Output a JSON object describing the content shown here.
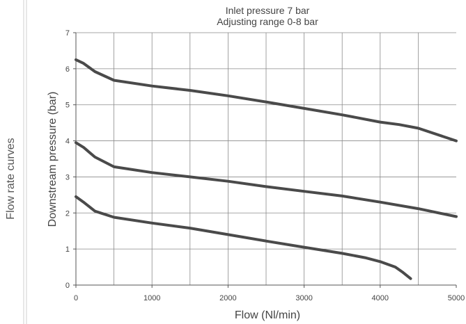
{
  "side_label": "Flow rate curves",
  "chart_data": {
    "type": "line",
    "title_lines": [
      "Inlet pressure 7 bar",
      "Adjusting range 0-8 bar"
    ],
    "xlabel": "Flow (Nl/min)",
    "ylabel": "Downstream pressure (bar)",
    "xlim": [
      0,
      5000
    ],
    "ylim": [
      0,
      7
    ],
    "x_ticks": [
      0,
      1000,
      2000,
      3000,
      4000,
      5000
    ],
    "y_ticks": [
      0,
      1,
      2,
      3,
      4,
      5,
      6,
      7
    ],
    "x_grid_step": 500,
    "grid": true,
    "line_color": "#4a4a4a",
    "series": [
      {
        "x": [
          0,
          100,
          250,
          500,
          1000,
          1500,
          2000,
          2500,
          3000,
          3500,
          4000,
          4250,
          4500,
          5000
        ],
        "y": [
          6.25,
          6.15,
          5.92,
          5.68,
          5.52,
          5.4,
          5.25,
          5.08,
          4.9,
          4.72,
          4.52,
          4.45,
          4.35,
          4.0
        ]
      },
      {
        "x": [
          0,
          100,
          250,
          500,
          1000,
          1500,
          2000,
          2500,
          3000,
          3500,
          4000,
          4500,
          5000
        ],
        "y": [
          3.95,
          3.82,
          3.55,
          3.28,
          3.12,
          3.0,
          2.88,
          2.73,
          2.6,
          2.47,
          2.3,
          2.12,
          1.9
        ]
      },
      {
        "x": [
          0,
          100,
          250,
          500,
          1000,
          1500,
          2000,
          2500,
          3000,
          3500,
          3800,
          4000,
          4200,
          4300,
          4400
        ],
        "y": [
          2.45,
          2.3,
          2.05,
          1.88,
          1.72,
          1.58,
          1.4,
          1.22,
          1.05,
          0.88,
          0.76,
          0.65,
          0.5,
          0.35,
          0.18
        ]
      }
    ]
  }
}
